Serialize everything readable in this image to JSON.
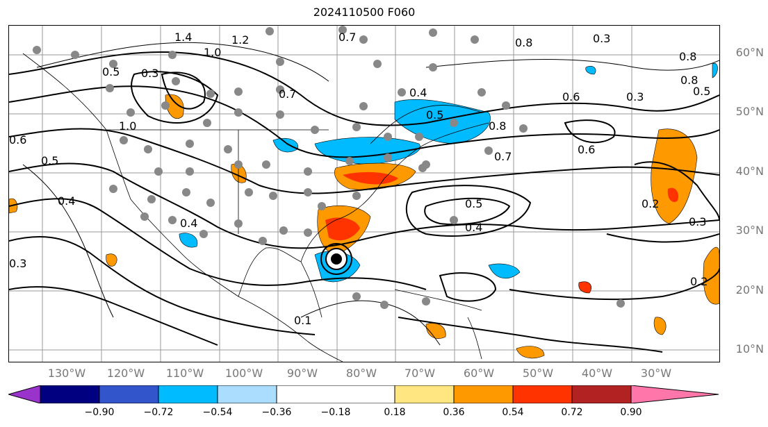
{
  "title": "2024110500 F060",
  "lat_labels": [
    "60°N",
    "50°N",
    "40°N",
    "30°N",
    "20°N",
    "10°N"
  ],
  "lon_labels": [
    "130°W",
    "120°W",
    "110°W",
    "100°W",
    "90°W",
    "80°W",
    "70°W",
    "60°W",
    "50°W",
    "40°W",
    "30°W"
  ],
  "contour_labels": [
    "1.4",
    "1.2",
    "1.0",
    "0.5",
    "0.3",
    "0.8",
    "0.7",
    "0.4",
    "0.6",
    "0.5",
    "1.0",
    "0.8",
    "0.6",
    "0.5",
    "0.3",
    "0.5",
    "0.4",
    "0.8",
    "0.7",
    "0.6",
    "0.3",
    "0.8",
    "0.5",
    "0.2",
    "0.3",
    "0.2",
    "0.3",
    "0.4",
    "0.1",
    "0.4",
    "0.7"
  ],
  "colorbar": {
    "ticks": [
      "−0.90",
      "−0.72",
      "−0.54",
      "−0.36",
      "−0.18",
      "0.18",
      "0.36",
      "0.54",
      "0.72",
      "0.90"
    ],
    "colors": {
      "under": "#9933cc",
      "c1": "#000080",
      "c2": "#3355cc",
      "c3": "#00bbff",
      "c4": "#aaddff",
      "c5": "#ffffff",
      "c6": "#ffe680",
      "c7": "#ff9900",
      "c8": "#ff3300",
      "c9": "#b22222",
      "over": "#ff77aa"
    }
  }
}
